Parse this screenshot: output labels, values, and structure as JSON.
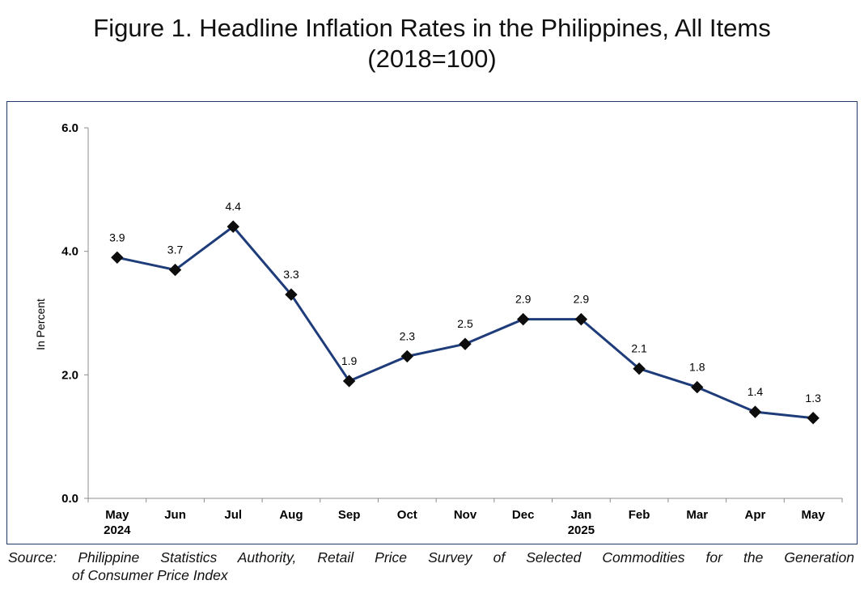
{
  "chart_data": {
    "type": "line",
    "title": "Figure 1. Headline Inflation Rates in the Philippines, All Items",
    "subtitle": "(2018=100)",
    "ylabel": "In Percent",
    "xlabel": "",
    "ylim": [
      0,
      6
    ],
    "yticks": [
      "0.0",
      "2.0",
      "4.0",
      "6.0"
    ],
    "grid": false,
    "legend": "none",
    "categories": [
      "May",
      "Jun",
      "Jul",
      "Aug",
      "Sep",
      "Oct",
      "Nov",
      "Dec",
      "Jan",
      "Feb",
      "Mar",
      "Apr",
      "May"
    ],
    "category_sublabels": [
      "2024",
      "",
      "",
      "",
      "",
      "",
      "",
      "",
      "2025",
      "",
      "",
      "",
      ""
    ],
    "series": [
      {
        "values": [
          3.9,
          3.7,
          4.4,
          3.3,
          1.9,
          2.3,
          2.5,
          2.9,
          2.9,
          2.1,
          1.8,
          1.4,
          1.3
        ],
        "labels": [
          "3.9",
          "3.7",
          "4.4",
          "3.3",
          "1.9",
          "2.3",
          "2.5",
          "2.9",
          "2.9",
          "2.1",
          "1.8",
          "1.4",
          "1.3"
        ],
        "color": "#1f3c7a",
        "marker": "diamond"
      }
    ]
  },
  "source": {
    "line1": "Source:  Philippine  Statistics  Authority,  Retail  Price  Survey  of  Selected  Commodities  for  the  Generation",
    "line2": "of Consumer Price Index"
  },
  "colors": {
    "frame": "#1f3864",
    "axis": "#8c8c8c",
    "series": "#1f3c7a"
  }
}
